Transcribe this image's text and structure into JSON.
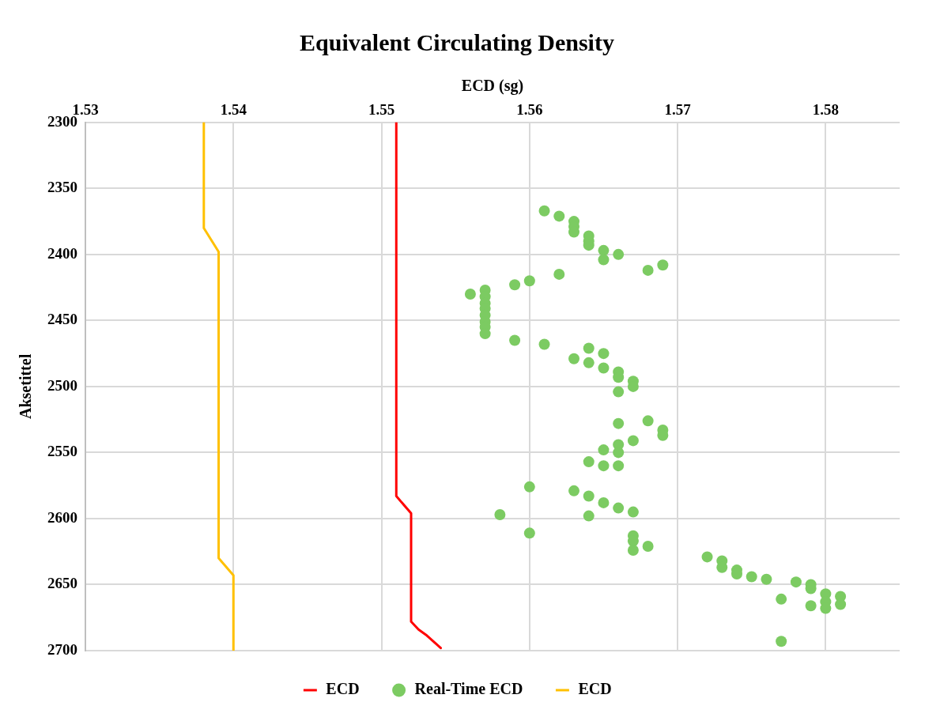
{
  "chart_data": {
    "type": "scatter",
    "title": "Equivalent Circulating Density",
    "xlabel": "ECD (sg)",
    "ylabel": "Aksetittel",
    "xlim": [
      1.53,
      1.585
    ],
    "xticks": [
      1.53,
      1.54,
      1.55,
      1.56,
      1.57,
      1.58
    ],
    "ylim": [
      2700,
      2300
    ],
    "yticks": [
      2300,
      2350,
      2400,
      2450,
      2500,
      2550,
      2600,
      2650,
      2700
    ],
    "grid": true,
    "legend": "bottom",
    "series": [
      {
        "name": "ECD",
        "type": "line",
        "color": "#ff0000",
        "marker": "none",
        "line_style": "solid",
        "x": [
          1.551,
          1.551,
          1.552,
          1.552,
          1.5525,
          1.553,
          1.554
        ],
        "values": [
          2300,
          2583,
          2596,
          2678,
          2684,
          2688,
          2698
        ]
      },
      {
        "name": "Real-Time ECD",
        "type": "scatter",
        "color": "#7ccb62",
        "marker": "circle",
        "x": [
          1.561,
          1.562,
          1.563,
          1.563,
          1.563,
          1.564,
          1.564,
          1.564,
          1.565,
          1.565,
          1.566,
          1.568,
          1.569,
          1.562,
          1.56,
          1.559,
          1.556,
          1.557,
          1.557,
          1.557,
          1.557,
          1.557,
          1.557,
          1.557,
          1.557,
          1.559,
          1.561,
          1.564,
          1.565,
          1.563,
          1.564,
          1.565,
          1.566,
          1.566,
          1.567,
          1.567,
          1.566,
          1.566,
          1.568,
          1.569,
          1.569,
          1.567,
          1.566,
          1.566,
          1.565,
          1.564,
          1.565,
          1.566,
          1.56,
          1.563,
          1.564,
          1.565,
          1.566,
          1.567,
          1.558,
          1.564,
          1.56,
          1.567,
          1.567,
          1.567,
          1.568,
          1.572,
          1.573,
          1.573,
          1.574,
          1.574,
          1.575,
          1.576,
          1.578,
          1.579,
          1.579,
          1.58,
          1.58,
          1.58,
          1.581,
          1.581,
          1.577,
          1.579,
          1.577
        ],
        "values": [
          2367,
          2371,
          2375,
          2379,
          2383,
          2386,
          2390,
          2393,
          2397,
          2404,
          2400,
          2412,
          2408,
          2415,
          2420,
          2423,
          2430,
          2427,
          2432,
          2437,
          2441,
          2446,
          2451,
          2455,
          2460,
          2465,
          2468,
          2471,
          2475,
          2479,
          2482,
          2486,
          2489,
          2493,
          2496,
          2500,
          2504,
          2528,
          2526,
          2533,
          2537,
          2541,
          2544,
          2550,
          2548,
          2557,
          2560,
          2560,
          2576,
          2579,
          2583,
          2588,
          2592,
          2595,
          2597,
          2598,
          2611,
          2613,
          2617,
          2624,
          2621,
          2629,
          2632,
          2637,
          2639,
          2642,
          2644,
          2646,
          2648,
          2650,
          2653,
          2657,
          2663,
          2668,
          2659,
          2665,
          2661,
          2666,
          2693
        ]
      },
      {
        "name": "ECD",
        "type": "line",
        "color": "#ffc000",
        "marker": "none",
        "line_style": "solid",
        "x": [
          1.538,
          1.538,
          1.538,
          1.539,
          1.539,
          1.539,
          1.54,
          1.54
        ],
        "values": [
          2300,
          2366,
          2380,
          2398,
          2622,
          2630,
          2643,
          2700
        ]
      }
    ]
  }
}
